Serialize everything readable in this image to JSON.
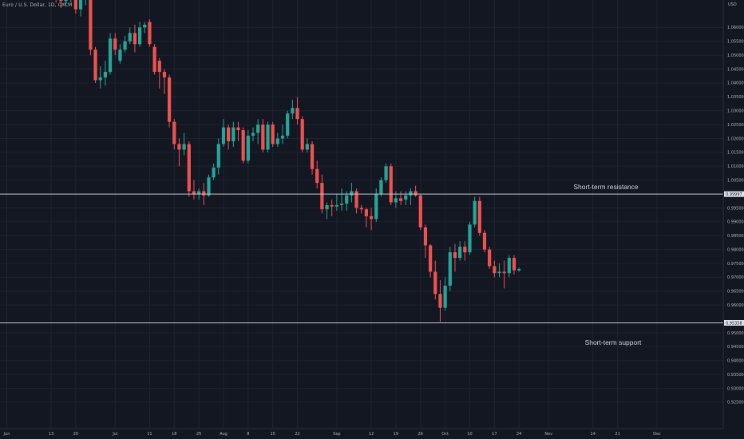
{
  "header": {
    "symbol_title": "Euro / U.S. Dollar, 1D, OXCM",
    "currency": "USD"
  },
  "colors": {
    "background": "#131722",
    "grid": "#1e2230",
    "up": "#26a69a",
    "down": "#ef5350",
    "text": "#b2b5be",
    "level_line": "#c8cad0"
  },
  "chart_data": {
    "type": "candlestick",
    "ylim": [
      0.9175,
      1.065
    ],
    "y_ticks": [
      1.06,
      1.055,
      1.05,
      1.045,
      1.04,
      1.035,
      1.03,
      1.025,
      1.02,
      1.015,
      1.01,
      1.005,
      0.995,
      0.99,
      0.985,
      0.98,
      0.975,
      0.97,
      0.965,
      0.96,
      0.95,
      0.945,
      0.94,
      0.935,
      0.93,
      0.925
    ],
    "y_tick_labels": [
      "1.06000",
      "1.05500",
      "1.05000",
      "1.04500",
      "1.04000",
      "1.03500",
      "1.03000",
      "1.02500",
      "1.02000",
      "1.01500",
      "1.01000",
      "1.00500",
      "0.99500",
      "0.99000",
      "0.98500",
      "0.98000",
      "0.97500",
      "0.97000",
      "0.96500",
      "0.96000",
      "0.95000",
      "0.94500",
      "0.94000",
      "0.93500",
      "0.93000",
      "0.92500"
    ],
    "x_ticks": [
      {
        "label": "Jun",
        "idx": 0
      },
      {
        "label": "13",
        "idx": 9
      },
      {
        "label": "20",
        "idx": 14
      },
      {
        "label": "Jul",
        "idx": 22
      },
      {
        "label": "11",
        "idx": 29
      },
      {
        "label": "18",
        "idx": 34
      },
      {
        "label": "25",
        "idx": 39
      },
      {
        "label": "Aug",
        "idx": 44
      },
      {
        "label": "8",
        "idx": 49
      },
      {
        "label": "15",
        "idx": 54
      },
      {
        "label": "22",
        "idx": 59
      },
      {
        "label": "Sep",
        "idx": 67
      },
      {
        "label": "12",
        "idx": 74
      },
      {
        "label": "19",
        "idx": 79
      },
      {
        "label": "26",
        "idx": 84
      },
      {
        "label": "Oct",
        "idx": 89
      },
      {
        "label": "10",
        "idx": 94
      },
      {
        "label": "17",
        "idx": 99
      },
      {
        "label": "24",
        "idx": 104
      },
      {
        "label": "Nov",
        "idx": 110
      },
      {
        "label": "14",
        "idx": 119
      },
      {
        "label": "21",
        "idx": 124
      },
      {
        "label": "Dec",
        "idx": 132
      }
    ],
    "candles": [
      {
        "o": 1.0755,
        "h": 1.079,
        "l": 1.071,
        "c": 1.072
      },
      {
        "o": 1.072,
        "h": 1.075,
        "l": 1.069,
        "c": 1.07
      },
      {
        "o": 1.07,
        "h": 1.074,
        "l": 1.067,
        "c": 1.0695
      },
      {
        "o": 1.0695,
        "h": 1.076,
        "l": 1.068,
        "c": 1.0715
      },
      {
        "o": 1.0715,
        "h": 1.074,
        "l": 1.069,
        "c": 1.072
      },
      {
        "o": 1.072,
        "h": 1.073,
        "l": 1.065,
        "c": 1.0665
      },
      {
        "o": 1.0665,
        "h": 1.072,
        "l": 1.064,
        "c": 1.07
      },
      {
        "o": 1.07,
        "h": 1.074,
        "l": 1.068,
        "c": 1.072
      },
      {
        "o": 1.072,
        "h": 1.073,
        "l": 1.05,
        "c": 1.052
      },
      {
        "o": 1.052,
        "h": 1.053,
        "l": 1.04,
        "c": 1.041
      },
      {
        "o": 1.041,
        "h": 1.046,
        "l": 1.038,
        "c": 1.042
      },
      {
        "o": 1.042,
        "h": 1.048,
        "l": 1.039,
        "c": 1.044
      },
      {
        "o": 1.044,
        "h": 1.058,
        "l": 1.043,
        "c": 1.056
      },
      {
        "o": 1.056,
        "h": 1.058,
        "l": 1.05,
        "c": 1.052
      },
      {
        "o": 1.048,
        "h": 1.054,
        "l": 1.047,
        "c": 1.052
      },
      {
        "o": 1.052,
        "h": 1.057,
        "l": 1.051,
        "c": 1.055
      },
      {
        "o": 1.055,
        "h": 1.06,
        "l": 1.054,
        "c": 1.058
      },
      {
        "o": 1.058,
        "h": 1.061,
        "l": 1.051,
        "c": 1.054
      },
      {
        "o": 1.054,
        "h": 1.062,
        "l": 1.053,
        "c": 1.06
      },
      {
        "o": 1.06,
        "h": 1.062,
        "l": 1.058,
        "c": 1.061
      },
      {
        "o": 1.062,
        "h": 1.063,
        "l": 1.053,
        "c": 1.054
      },
      {
        "o": 1.053,
        "h": 1.054,
        "l": 1.043,
        "c": 1.044
      },
      {
        "o": 1.048,
        "h": 1.049,
        "l": 1.038,
        "c": 1.044
      },
      {
        "o": 1.044,
        "h": 1.045,
        "l": 1.036,
        "c": 1.042
      },
      {
        "o": 1.042,
        "h": 1.043,
        "l": 1.024,
        "c": 1.026
      },
      {
        "o": 1.026,
        "h": 1.027,
        "l": 1.016,
        "c": 1.018
      },
      {
        "o": 1.018,
        "h": 1.02,
        "l": 1.01,
        "c": 1.016
      },
      {
        "o": 1.016,
        "h": 1.022,
        "l": 1.014,
        "c": 1.018
      },
      {
        "o": 1.018,
        "h": 1.019,
        "l": 0.999,
        "c": 1.001
      },
      {
        "o": 1.001,
        "h": 1.005,
        "l": 0.998,
        "c": 1.0
      },
      {
        "o": 1.0,
        "h": 1.002,
        "l": 0.998,
        "c": 1.001
      },
      {
        "o": 1.001,
        "h": 1.004,
        "l": 0.996,
        "c": 0.9995
      },
      {
        "o": 0.9995,
        "h": 1.007,
        "l": 0.999,
        "c": 1.006
      },
      {
        "o": 1.006,
        "h": 1.011,
        "l": 1.005,
        "c": 1.0095
      },
      {
        "o": 1.0095,
        "h": 1.02,
        "l": 1.007,
        "c": 1.018
      },
      {
        "o": 1.018,
        "h": 1.027,
        "l": 1.017,
        "c": 1.024
      },
      {
        "o": 1.024,
        "h": 1.025,
        "l": 1.016,
        "c": 1.019
      },
      {
        "o": 1.019,
        "h": 1.026,
        "l": 1.017,
        "c": 1.024
      },
      {
        "o": 1.024,
        "h": 1.026,
        "l": 1.019,
        "c": 1.023
      },
      {
        "o": 1.023,
        "h": 1.024,
        "l": 1.011,
        "c": 1.012
      },
      {
        "o": 1.012,
        "h": 1.023,
        "l": 1.011,
        "c": 1.021
      },
      {
        "o": 1.021,
        "h": 1.024,
        "l": 1.019,
        "c": 1.022
      },
      {
        "o": 1.022,
        "h": 1.027,
        "l": 1.018,
        "c": 1.025
      },
      {
        "o": 1.025,
        "h": 1.027,
        "l": 1.015,
        "c": 1.016
      },
      {
        "o": 1.016,
        "h": 1.026,
        "l": 1.015,
        "c": 1.025
      },
      {
        "o": 1.025,
        "h": 1.026,
        "l": 1.017,
        "c": 1.018
      },
      {
        "o": 1.018,
        "h": 1.022,
        "l": 1.017,
        "c": 1.02
      },
      {
        "o": 1.02,
        "h": 1.025,
        "l": 1.018,
        "c": 1.021
      },
      {
        "o": 1.021,
        "h": 1.03,
        "l": 1.02,
        "c": 1.029
      },
      {
        "o": 1.029,
        "h": 1.034,
        "l": 1.027,
        "c": 1.031
      },
      {
        "o": 1.031,
        "h": 1.035,
        "l": 1.025,
        "c": 1.027
      },
      {
        "o": 1.027,
        "h": 1.028,
        "l": 1.015,
        "c": 1.016
      },
      {
        "o": 1.016,
        "h": 1.02,
        "l": 1.015,
        "c": 1.018
      },
      {
        "o": 1.018,
        "h": 1.019,
        "l": 1.007,
        "c": 1.009
      },
      {
        "o": 1.009,
        "h": 1.012,
        "l": 1.002,
        "c": 1.004
      },
      {
        "o": 1.004,
        "h": 1.007,
        "l": 0.993,
        "c": 0.9945
      },
      {
        "o": 0.9945,
        "h": 0.997,
        "l": 0.991,
        "c": 0.996
      },
      {
        "o": 0.996,
        "h": 0.998,
        "l": 0.992,
        "c": 0.9955
      },
      {
        "o": 0.9955,
        "h": 1.0,
        "l": 0.994,
        "c": 0.996
      },
      {
        "o": 0.996,
        "h": 1.002,
        "l": 0.994,
        "c": 0.9965
      },
      {
        "o": 0.9965,
        "h": 1.001,
        "l": 0.994,
        "c": 0.9995
      },
      {
        "o": 0.9995,
        "h": 1.004,
        "l": 0.997,
        "c": 1.001
      },
      {
        "o": 1.001,
        "h": 1.002,
        "l": 0.993,
        "c": 0.995
      },
      {
        "o": 0.995,
        "h": 0.996,
        "l": 0.993,
        "c": 0.9945
      },
      {
        "o": 0.9945,
        "h": 0.995,
        "l": 0.988,
        "c": 0.992
      },
      {
        "o": 0.992,
        "h": 0.995,
        "l": 0.987,
        "c": 0.991
      },
      {
        "o": 0.991,
        "h": 1.002,
        "l": 0.99,
        "c": 1.0
      },
      {
        "o": 1.0,
        "h": 1.006,
        "l": 0.999,
        "c": 1.005
      },
      {
        "o": 1.005,
        "h": 1.011,
        "l": 1.004,
        "c": 1.01
      },
      {
        "o": 1.01,
        "h": 1.011,
        "l": 0.996,
        "c": 0.997
      },
      {
        "o": 0.997,
        "h": 1.001,
        "l": 0.995,
        "c": 0.9985
      },
      {
        "o": 0.9985,
        "h": 1.001,
        "l": 0.996,
        "c": 0.9975
      },
      {
        "o": 0.998,
        "h": 1.001,
        "l": 0.996,
        "c": 0.9995
      },
      {
        "o": 0.9995,
        "h": 1.002,
        "l": 0.996,
        "c": 1.001
      },
      {
        "o": 1.001,
        "h": 1.003,
        "l": 0.999,
        "c": 0.9995
      },
      {
        "o": 0.9995,
        "h": 1.0,
        "l": 0.987,
        "c": 0.988
      },
      {
        "o": 0.988,
        "h": 0.989,
        "l": 0.977,
        "c": 0.9815
      },
      {
        "o": 0.9815,
        "h": 0.982,
        "l": 0.97,
        "c": 0.972
      },
      {
        "o": 0.972,
        "h": 0.976,
        "l": 0.962,
        "c": 0.964
      },
      {
        "o": 0.964,
        "h": 0.969,
        "l": 0.954,
        "c": 0.959
      },
      {
        "o": 0.959,
        "h": 0.97,
        "l": 0.958,
        "c": 0.967
      },
      {
        "o": 0.967,
        "h": 0.981,
        "l": 0.965,
        "c": 0.979
      },
      {
        "o": 0.979,
        "h": 0.982,
        "l": 0.972,
        "c": 0.977
      },
      {
        "o": 0.977,
        "h": 0.983,
        "l": 0.976,
        "c": 0.981
      },
      {
        "o": 0.981,
        "h": 0.983,
        "l": 0.976,
        "c": 0.979
      },
      {
        "o": 0.979,
        "h": 0.99,
        "l": 0.978,
        "c": 0.989
      },
      {
        "o": 0.989,
        "h": 0.999,
        "l": 0.988,
        "c": 0.9975
      },
      {
        "o": 0.9975,
        "h": 0.999,
        "l": 0.985,
        "c": 0.986
      },
      {
        "o": 0.986,
        "h": 0.987,
        "l": 0.979,
        "c": 0.98
      },
      {
        "o": 0.98,
        "h": 0.981,
        "l": 0.973,
        "c": 0.974
      },
      {
        "o": 0.974,
        "h": 0.976,
        "l": 0.97,
        "c": 0.9715
      },
      {
        "o": 0.9715,
        "h": 0.975,
        "l": 0.97,
        "c": 0.972
      },
      {
        "o": 0.972,
        "h": 0.976,
        "l": 0.966,
        "c": 0.9715
      },
      {
        "o": 0.9715,
        "h": 0.978,
        "l": 0.97,
        "c": 0.977
      },
      {
        "o": 0.977,
        "h": 0.978,
        "l": 0.971,
        "c": 0.9725
      },
      {
        "o": 0.9725,
        "h": 0.9735,
        "l": 0.972,
        "c": 0.973
      }
    ],
    "x_slots": [
      9,
      10,
      11,
      12,
      13,
      14,
      15,
      16,
      17,
      18,
      19,
      20,
      21,
      22,
      23,
      24,
      25,
      26,
      27,
      28,
      29,
      30,
      31,
      32,
      33,
      34,
      35,
      36,
      37,
      38,
      39,
      40,
      41,
      42,
      43,
      44,
      45,
      46,
      47,
      48,
      49,
      50,
      51,
      52,
      53,
      54,
      55,
      56,
      57,
      58,
      59,
      60,
      61,
      62,
      63,
      64,
      65,
      66,
      67,
      68,
      69,
      70,
      71,
      72,
      73,
      74,
      75,
      76,
      77,
      78,
      79,
      80,
      81,
      82,
      83,
      84,
      85,
      86,
      87,
      88,
      89,
      90,
      91,
      92,
      93,
      94,
      95,
      96,
      97,
      98,
      99,
      100,
      101,
      102,
      103,
      104
    ],
    "levels": [
      {
        "name": "resistance",
        "value": 0.99997,
        "label": "0.99997",
        "annotation": "Short-term resistance"
      },
      {
        "name": "support",
        "value": 0.95358,
        "label": "0.95358",
        "annotation": "Short-term support"
      }
    ]
  }
}
